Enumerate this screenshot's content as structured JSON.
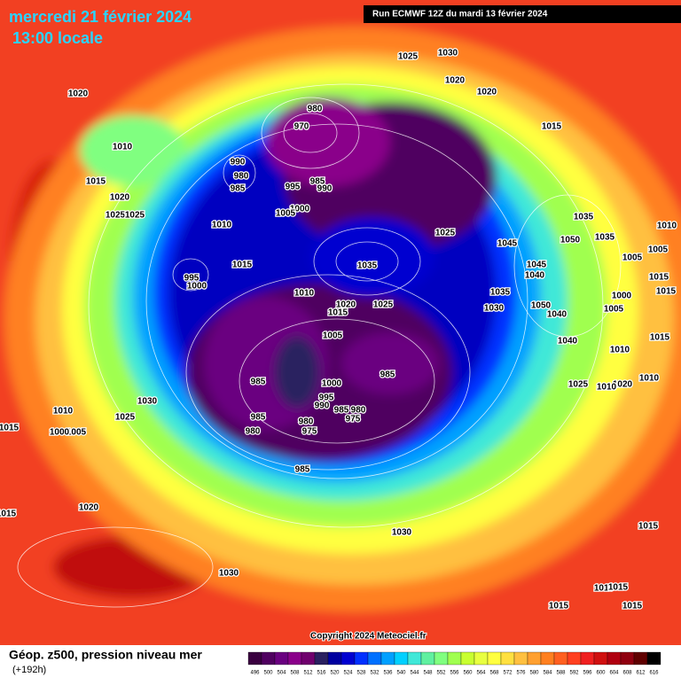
{
  "header": {
    "date": "mercredi 21 février 2024",
    "time": "13:00 locale",
    "run": "Run ECMWF 12Z du mardi 13 février 2024"
  },
  "footer": {
    "field": "Géop. z500, pression niveau mer",
    "lead": "(+192h)",
    "copyright": "Copyright 2024 Meteociel.fr"
  },
  "legend": {
    "ticks": [
      496,
      500,
      504,
      508,
      512,
      516,
      520,
      524,
      528,
      532,
      536,
      540,
      544,
      548,
      552,
      556,
      560,
      564,
      568,
      572,
      576,
      580,
      584,
      588,
      592,
      596,
      600,
      604,
      608,
      612,
      616
    ],
    "colors": [
      "#3a0040",
      "#500060",
      "#6a0080",
      "#8a008a",
      "#70006e",
      "#2a2060",
      "#0000a0",
      "#0000d0",
      "#0030ff",
      "#0070ff",
      "#00a0ff",
      "#00d0ff",
      "#40e8d8",
      "#60f0a0",
      "#80ff80",
      "#a0ff50",
      "#c8ff30",
      "#e8ff40",
      "#ffff40",
      "#ffe040",
      "#ffc040",
      "#ffa030",
      "#ff8020",
      "#ff6020",
      "#ff4020",
      "#f02020",
      "#d01010",
      "#b00010",
      "#900010",
      "#600000",
      "#000000"
    ]
  },
  "isobar_labels": [
    980,
    970,
    985,
    990,
    995,
    1000,
    1005,
    990,
    980,
    985,
    1010,
    1015,
    1020,
    1025,
    1025,
    1010,
    1020,
    1025,
    1030,
    1020,
    1020,
    1015,
    1035,
    1035,
    1045,
    1050,
    1025,
    1035,
    1010,
    1005,
    1005,
    1045,
    1040,
    1015,
    1015,
    1035,
    1030,
    1050,
    1040,
    1005,
    1000,
    1020,
    1025,
    1015,
    1010,
    1015,
    995,
    1000,
    1005,
    1010,
    1040,
    1015,
    1010,
    1025,
    1020,
    1010,
    985,
    1000,
    995,
    990,
    985,
    980,
    975,
    980,
    975,
    985,
    985,
    980,
    985,
    1030,
    1025,
    1010,
    1005,
    1000,
    1015,
    1020,
    1015,
    1030,
    1030,
    1015,
    1015,
    1015,
    1015,
    1015
  ]
}
